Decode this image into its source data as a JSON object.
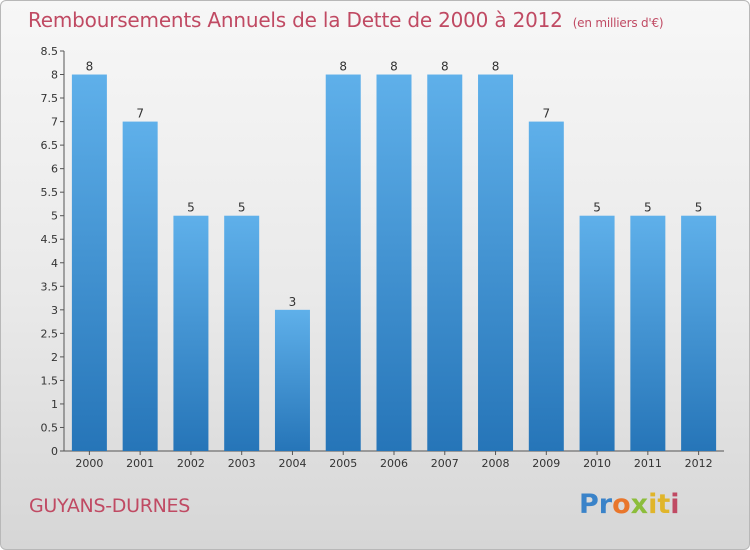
{
  "header": {
    "title": "Remboursements Annuels de la Dette de 2000 à 2012",
    "unit": "(en milliers d'€)"
  },
  "footer": {
    "commune": "GUYANS-DURNES",
    "logo": [
      "Pr",
      "o",
      "x",
      "it",
      "i"
    ]
  },
  "colors": {
    "bar_top": "#5fb0ea",
    "bar_bottom": "#2675b8",
    "title": "#c04a63"
  },
  "chart_data": {
    "type": "bar",
    "categories": [
      "2000",
      "2001",
      "2002",
      "2003",
      "2004",
      "2005",
      "2006",
      "2007",
      "2008",
      "2009",
      "2010",
      "2011",
      "2012"
    ],
    "values": [
      8,
      7,
      5,
      5,
      3,
      8,
      8,
      8,
      8,
      7,
      5,
      5,
      5
    ],
    "data_labels": [
      "8",
      "7",
      "5",
      "5",
      "3",
      "8",
      "8",
      "8",
      "8",
      "7",
      "5",
      "5",
      "5"
    ],
    "yticks": [
      "0",
      "0.5",
      "1",
      "1.5",
      "2",
      "2.5",
      "3",
      "3.5",
      "4",
      "4.5",
      "5",
      "5.5",
      "6",
      "6.5",
      "7",
      "7.5",
      "8",
      "8.5"
    ],
    "ylim": [
      0,
      8.5
    ],
    "grid": false,
    "legend": "none"
  }
}
